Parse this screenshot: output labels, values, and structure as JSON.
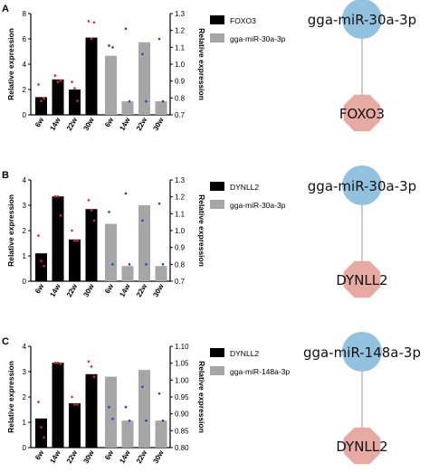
{
  "figure": {
    "panels": [
      {
        "letter": "A",
        "mirna": "gga-miR-30a-3p",
        "target": "FOXO3",
        "legend": [
          "FOXO3",
          "gga-miR-30a-3p"
        ]
      },
      {
        "letter": "B",
        "mirna": "gga-miR-30a-3p",
        "target": "DYNLL2",
        "legend": [
          "DYNLL2",
          "gga-miR-30a-3p"
        ]
      },
      {
        "letter": "C",
        "mirna": "gga-miR-148a-3p",
        "target": "DYNLL2",
        "legend": [
          "DYNLL2",
          "gga-miR-148a-3p"
        ]
      }
    ],
    "colors": {
      "gene_bar": "#000000",
      "mirna_bar": "#a6a6a6",
      "gene_dots": "#e8281e",
      "mirna_dots": "#1f3fd8",
      "mirna_node": "#92c2de",
      "target_node": "#e7aaa2",
      "edge": "#9a9a9a"
    }
  },
  "chart_data": [
    {
      "type": "bar",
      "panel": "A",
      "categories": [
        "6w",
        "14w",
        "22w",
        "30w"
      ],
      "ylabel": "Relative expression",
      "y2label": "Relative expression",
      "ylim": [
        0,
        8
      ],
      "yticks": [
        0,
        2,
        4,
        6,
        8
      ],
      "y2lim": [
        0.7,
        1.3
      ],
      "y2ticks": [
        0.7,
        0.8,
        0.9,
        1.0,
        1.1,
        1.2,
        1.3
      ],
      "y2ticklabels": [
        "0.7",
        "0.8",
        "0.9",
        "1.0",
        "1.1",
        "1.2",
        "1.3"
      ],
      "series": [
        {
          "name": "FOXO3",
          "axis": "left",
          "values": [
            1.4,
            2.8,
            2.0,
            6.1
          ],
          "points": [
            [
              2.4,
              1.1,
              1.3
            ],
            [
              3.1,
              2.6,
              2.7
            ],
            [
              2.6,
              2.1,
              1.1
            ],
            [
              7.4,
              6.0,
              7.3
            ]
          ]
        },
        {
          "name": "gga-miR-30a-3p",
          "axis": "right",
          "values": [
            1.05,
            0.78,
            1.13,
            0.78
          ],
          "points": [
            [
              1.11,
              1.1
            ],
            [
              1.21,
              0.78
            ],
            [
              1.06,
              0.78
            ],
            [
              1.15,
              0.78
            ]
          ]
        }
      ]
    },
    {
      "type": "bar",
      "panel": "B",
      "categories": [
        "6w",
        "14w",
        "22w",
        "30w"
      ],
      "ylabel": "Relative expression",
      "y2label": "Relative expression",
      "ylim": [
        0,
        4
      ],
      "yticks": [
        0,
        1,
        2,
        3,
        4
      ],
      "y2lim": [
        0.7,
        1.3
      ],
      "y2ticks": [
        0.7,
        0.8,
        0.9,
        1.0,
        1.1,
        1.2,
        1.3
      ],
      "y2ticklabels": [
        "0.7",
        "0.8",
        "0.9",
        "1.0",
        "1.1",
        "1.2",
        "1.3"
      ],
      "series": [
        {
          "name": "DYNLL2",
          "axis": "left",
          "values": [
            1.1,
            3.35,
            1.65,
            2.85
          ],
          "points": [
            [
              1.8,
              0.8,
              0.6
            ],
            [
              3.35,
              3.35,
              2.6
            ],
            [
              2.0,
              1.6,
              1.6
            ],
            [
              3.2,
              2.8,
              2.4
            ]
          ]
        },
        {
          "name": "gga-miR-30a-3p",
          "axis": "right",
          "values": [
            1.04,
            0.79,
            1.15,
            0.79
          ],
          "points": [
            [
              1.11,
              0.8
            ],
            [
              1.22,
              0.8
            ],
            [
              1.06,
              0.8
            ],
            [
              1.16,
              0.8
            ]
          ]
        }
      ]
    },
    {
      "type": "bar",
      "panel": "C",
      "categories": [
        "6w",
        "14w",
        "22w",
        "30w"
      ],
      "ylabel": "Relative expression",
      "y2label": "Relative expression",
      "ylim": [
        0,
        4
      ],
      "yticks": [
        0,
        1,
        2,
        3,
        4
      ],
      "y2lim": [
        0.8,
        1.1
      ],
      "y2ticks": [
        0.8,
        0.85,
        0.9,
        0.95,
        1.0,
        1.05,
        1.1
      ],
      "y2ticklabels": [
        "0.80",
        "0.85",
        "0.90",
        "0.95",
        "1.00",
        "1.05",
        "1.10"
      ],
      "series": [
        {
          "name": "DYNLL2",
          "axis": "left",
          "values": [
            1.15,
            3.35,
            1.75,
            2.9
          ],
          "points": [
            [
              1.8,
              0.8,
              0.4
            ],
            [
              3.35,
              3.35,
              3.3
            ],
            [
              2.0,
              1.7,
              1.7
            ],
            [
              3.4,
              3.2,
              2.8
            ]
          ]
        },
        {
          "name": "gga-miR-148a-3p",
          "axis": "right",
          "values": [
            1.01,
            0.88,
            1.03,
            0.88
          ],
          "points": [
            [
              0.92,
              0.885
            ],
            [
              0.92,
              0.88
            ],
            [
              0.98,
              0.88
            ],
            [
              0.96,
              0.88
            ]
          ]
        }
      ]
    }
  ]
}
